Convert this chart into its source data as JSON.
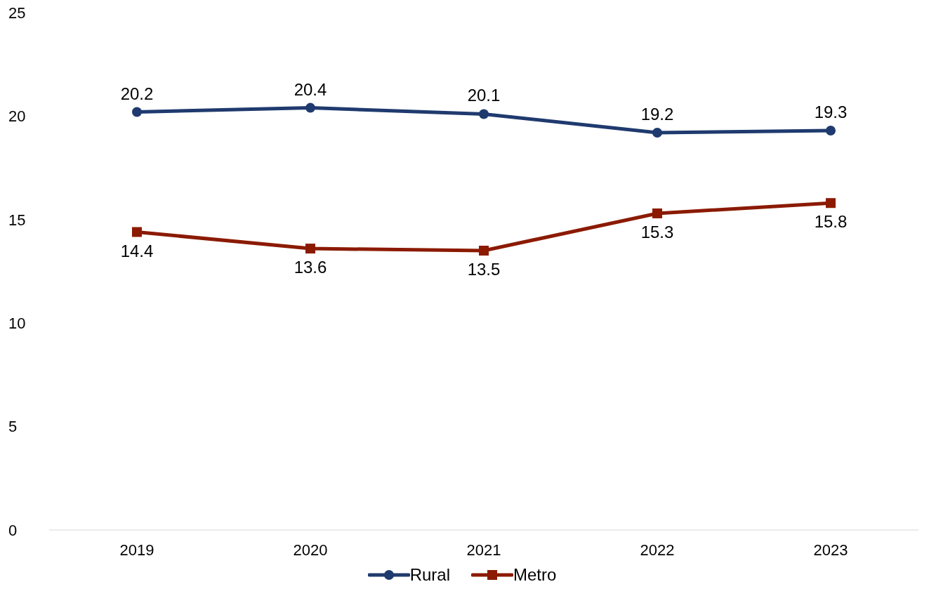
{
  "chart_data": {
    "type": "line",
    "categories": [
      "2019",
      "2020",
      "2021",
      "2022",
      "2023"
    ],
    "series": [
      {
        "name": "Rural",
        "color": "#1f3a6e",
        "marker": "circle",
        "values": [
          20.2,
          20.4,
          20.1,
          19.2,
          19.3
        ]
      },
      {
        "name": "Metro",
        "color": "#8b1a00",
        "marker": "square",
        "values": [
          14.4,
          13.6,
          13.5,
          15.3,
          15.8
        ]
      }
    ],
    "ylim": [
      0,
      25
    ],
    "yticks": [
      0,
      5,
      10,
      15,
      20,
      25
    ],
    "grid": false,
    "legend": "bottom",
    "data_labels": true
  }
}
